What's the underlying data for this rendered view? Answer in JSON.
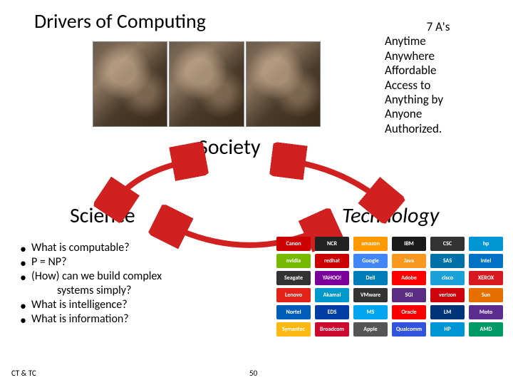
{
  "title": "Drivers of Computing",
  "nodes": {
    "society": "Society",
    "science": "Science",
    "technology": "Technology"
  },
  "sevenA": {
    "header": "7 A's",
    "items": [
      "Anytime",
      "Anywhere",
      "Affordable",
      "Access to",
      "Anything by",
      "Anyone",
      "Authorized."
    ]
  },
  "science_questions": [
    "What is computable?",
    "P = NP?",
    "(How) can we build complex",
    "__indent__systems simply?",
    "What is intelligence?",
    "What is information?"
  ],
  "arrows": {
    "color": "#d02020",
    "stroke_width": 8
  },
  "logos": [
    {
      "name": "Canon",
      "color": "#cc0000"
    },
    {
      "name": "NCR",
      "color": "#222"
    },
    {
      "name": "amazon",
      "color": "#ff9900"
    },
    {
      "name": "IBM",
      "color": "#1a1a1a"
    },
    {
      "name": "CSC",
      "color": "#333"
    },
    {
      "name": "hp",
      "color": "#0096d6"
    },
    {
      "name": "nvidia",
      "color": "#76b900"
    },
    {
      "name": "redhat",
      "color": "#cc0000"
    },
    {
      "name": "Google",
      "color": "#4285f4"
    },
    {
      "name": "Java",
      "color": "#f89820"
    },
    {
      "name": "SAS",
      "color": "#0071a6"
    },
    {
      "name": "intel",
      "color": "#0071c5"
    },
    {
      "name": "Seagate",
      "color": "#333"
    },
    {
      "name": "YAHOO!",
      "color": "#7b0099"
    },
    {
      "name": "Dell",
      "color": "#007db8"
    },
    {
      "name": "Adobe",
      "color": "#ff0000"
    },
    {
      "name": "cisco",
      "color": "#1ba0d7"
    },
    {
      "name": "XEROX",
      "color": "#d71920"
    },
    {
      "name": "Lenovo",
      "color": "#e2231a"
    },
    {
      "name": "Akamai",
      "color": "#0099cc"
    },
    {
      "name": "VMware",
      "color": "#333"
    },
    {
      "name": "SGI",
      "color": "#5a2d82"
    },
    {
      "name": "verizon",
      "color": "#cd040b"
    },
    {
      "name": "Sun",
      "color": "#e76f00"
    },
    {
      "name": "Nortel",
      "color": "#005eb8"
    },
    {
      "name": "EDS",
      "color": "#003da5"
    },
    {
      "name": "MS",
      "color": "#00a4ef"
    },
    {
      "name": "Oracle",
      "color": "#f80000"
    },
    {
      "name": "LM",
      "color": "#003478"
    },
    {
      "name": "Moto",
      "color": "#5c2d91"
    },
    {
      "name": "Symantec",
      "color": "#fdb913"
    },
    {
      "name": "Broadcom",
      "color": "#cc092f"
    },
    {
      "name": "Apple",
      "color": "#555"
    },
    {
      "name": "Qualcomm",
      "color": "#3253dc"
    },
    {
      "name": "HP",
      "color": "#0096d6"
    },
    {
      "name": "AMD",
      "color": "#009a66"
    }
  ],
  "footer": {
    "left": "CT & TC",
    "page": "50"
  },
  "colors": {
    "background": "#ffffff",
    "text": "#000000"
  }
}
